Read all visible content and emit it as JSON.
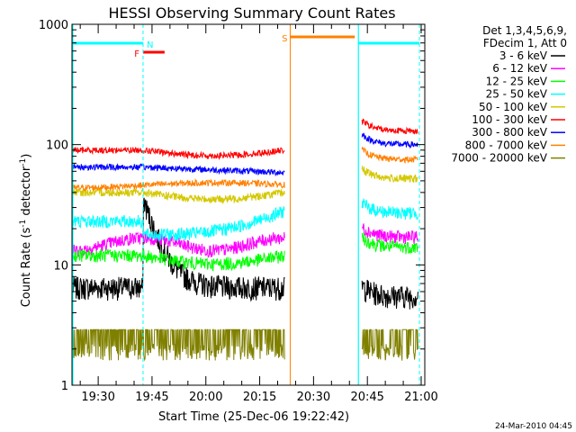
{
  "chart_data": {
    "type": "line",
    "title": "HESSI Observing Summary Count Rates",
    "xlabel": "Start Time (25-Dec-06 19:22:42)",
    "ylabel_main": "Count Rate (s",
    "ylabel_sup1": "-1",
    "ylabel_mid": " detector",
    "ylabel_sup2": "-1",
    "ylabel_end": ")",
    "x_range_minutes": [
      "19:22:42",
      "21:01:00"
    ],
    "y_scale": "log",
    "ylim": [
      1,
      1000
    ],
    "x_ticks": [
      "19:30",
      "19:45",
      "20:00",
      "20:15",
      "20:30",
      "20:45",
      "21:00"
    ],
    "y_ticks": [
      "1",
      "10",
      "100",
      "1000"
    ],
    "legend_header": [
      "Det 1,3,4,5,6,9,",
      "FDecim 1, Att 0"
    ],
    "legend_placement": "right",
    "series": [
      {
        "name": "3 - 6 keV",
        "color": "#000000",
        "level": 6.5
      },
      {
        "name": "6 - 12 keV",
        "color": "#ff00ff",
        "level": 15
      },
      {
        "name": "12 - 25 keV",
        "color": "#00ff00",
        "level": 12
      },
      {
        "name": "25 - 50 keV",
        "color": "#00ffff",
        "level": 21
      },
      {
        "name": "50 - 100 keV",
        "color": "#d4c800",
        "level": 40
      },
      {
        "name": "100 - 300 keV",
        "color": "#ff0000",
        "level": 90
      },
      {
        "name": "300 - 800 keV",
        "color": "#0000ff",
        "level": 65
      },
      {
        "name": "800 - 7000 keV",
        "color": "#ff8000",
        "level": 46
      },
      {
        "name": "7000 - 20000 keV",
        "color": "#808000",
        "level": 2
      }
    ],
    "flags": [
      {
        "label": "N",
        "color": "#00ffff",
        "start": "19:22:42",
        "end": "19:42:30"
      },
      {
        "label": "F",
        "color": "#ff0000",
        "start": "19:42:30",
        "end": "19:48:30"
      },
      {
        "label": "S",
        "color": "#ff8000",
        "start": "20:23:30",
        "end": "20:41:30"
      },
      {
        "label": "",
        "color": "#00ffff",
        "start": "20:42:30",
        "end": "20:59:30"
      }
    ],
    "annotation_timestamp": "24-Mar-2010 04:45"
  }
}
